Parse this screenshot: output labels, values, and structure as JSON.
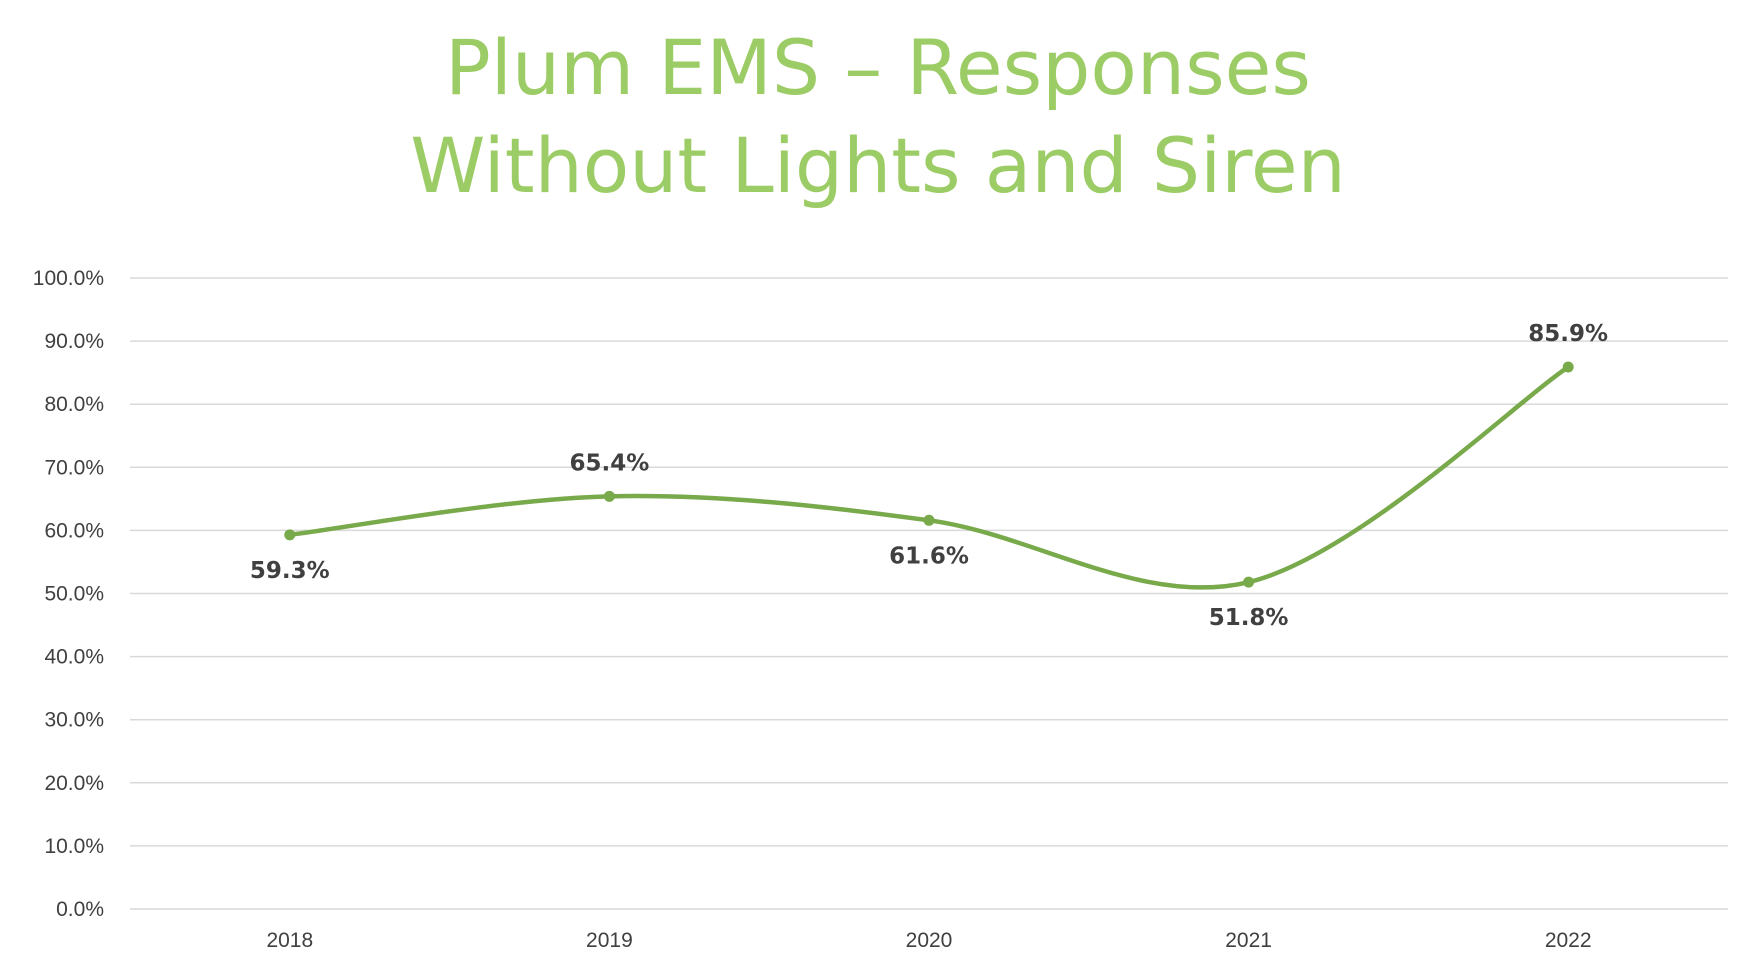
{
  "chart_data": {
    "type": "line",
    "title_lines": [
      "Plum EMS – Responses",
      "Without Lights and Siren"
    ],
    "xlabel": "",
    "ylabel": "",
    "categories": [
      "2018",
      "2019",
      "2020",
      "2021",
      "2022"
    ],
    "series": [
      {
        "values": [
          59.3,
          65.4,
          61.6,
          51.8,
          85.9
        ],
        "data_labels": [
          "59.3%",
          "65.4%",
          "61.6%",
          "51.8%",
          "85.9%"
        ],
        "label_positions": [
          "below",
          "above",
          "below",
          "below",
          "above"
        ]
      }
    ],
    "ylim": [
      0,
      100
    ],
    "y_ticks": [
      "0.0%",
      "10.0%",
      "20.0%",
      "30.0%",
      "40.0%",
      "50.0%",
      "60.0%",
      "70.0%",
      "80.0%",
      "90.0%",
      "100.0%"
    ],
    "grid": true,
    "legend": "none",
    "smooth": true,
    "colors": {
      "title": "#9ccc65",
      "line": "#78a94a",
      "grid": "#d9d9d9",
      "text": "#404040"
    }
  }
}
